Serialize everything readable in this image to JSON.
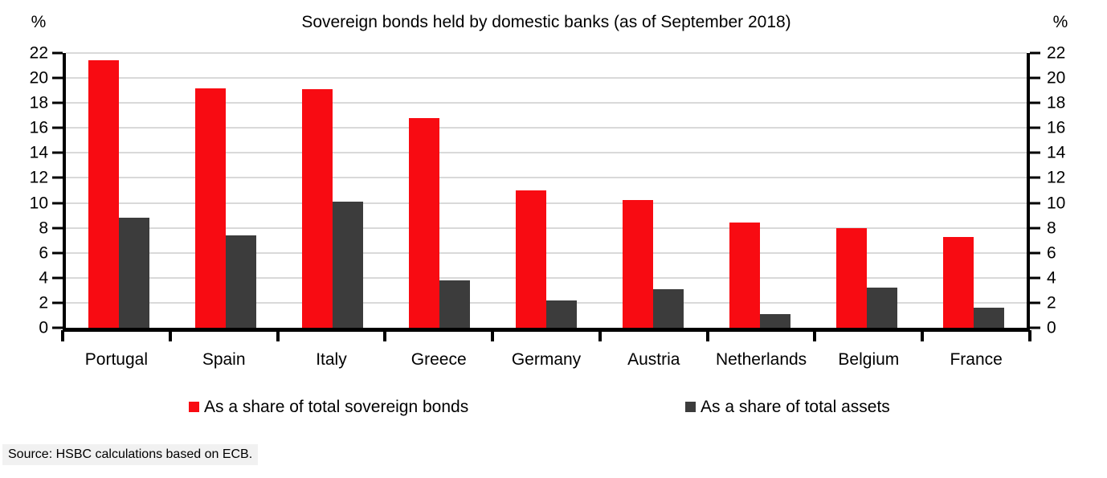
{
  "chart_data": {
    "type": "bar",
    "title": "Sovereign bonds held by domestic banks (as of September 2018)",
    "y_axis_unit": "%",
    "ylim": [
      0,
      22
    ],
    "ytick_step": 2,
    "grid": true,
    "legend_position": "bottom",
    "categories": [
      "Portugal",
      "Spain",
      "Italy",
      "Greece",
      "Germany",
      "Austria",
      "Netherlands",
      "Belgium",
      "France"
    ],
    "series": [
      {
        "name": "As a share of total sovereign bonds",
        "color": "#F80B12",
        "values": [
          21.4,
          19.2,
          19.1,
          16.8,
          11.0,
          10.2,
          8.4,
          8.0,
          7.3
        ]
      },
      {
        "name": "As a share of total assets",
        "color": "#3C3C3C",
        "values": [
          8.8,
          7.4,
          10.1,
          3.8,
          2.2,
          3.1,
          1.1,
          3.2,
          1.6
        ]
      }
    ]
  },
  "source": {
    "text": "Source: HSBC calculations based on ECB."
  },
  "colors": {
    "gridline": "#D9D9D9",
    "axis": "#000000",
    "source_bg": "#F1F1F1",
    "background": "#FFFFFF"
  }
}
